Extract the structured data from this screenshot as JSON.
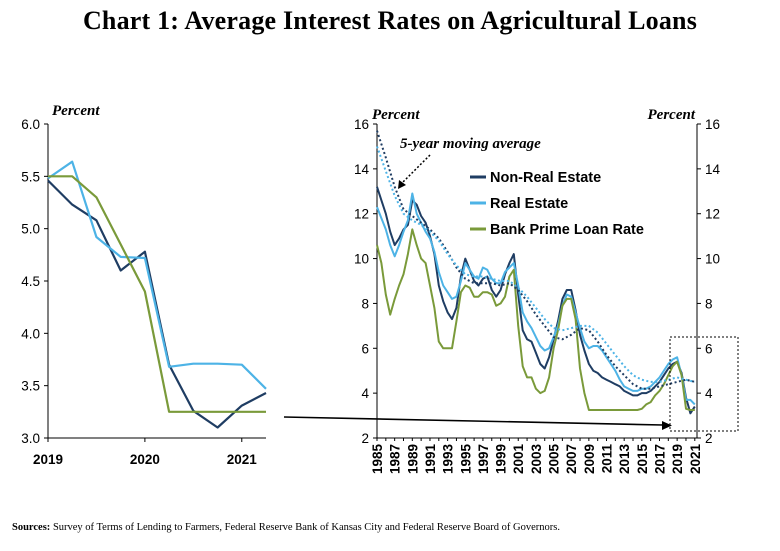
{
  "title": "Chart 1: Average Interest Rates on Agricultural Loans",
  "source": {
    "label": "Sources:",
    "text": " Survey of Terms of Lending to Farmers, Federal Reserve Bank of Kansas City and Federal Reserve Board of Governors."
  },
  "colors": {
    "non_real_estate": "#1f3d63",
    "real_estate": "#4db3e6",
    "bank_prime": "#7a9a3a"
  },
  "chart_data": [
    {
      "type": "line",
      "unit_label": "Percent",
      "ylim": [
        3.0,
        6.0
      ],
      "yticks": [
        "6.0",
        "5.5",
        "5.0",
        "4.5",
        "4.0",
        "3.5",
        "3.0"
      ],
      "xlim": [
        2019,
        2021.25
      ],
      "xticks": [
        "2019",
        "2020",
        "2021"
      ],
      "series": [
        {
          "key": "non_real_estate",
          "x": [
            2019.0,
            2019.25,
            2019.5,
            2019.75,
            2020.0,
            2020.25,
            2020.5,
            2020.75,
            2021.0,
            2021.25
          ],
          "values": [
            5.46,
            5.23,
            5.08,
            4.6,
            4.78,
            3.7,
            3.26,
            3.1,
            3.31,
            3.43
          ]
        },
        {
          "key": "real_estate",
          "x": [
            2019.0,
            2019.25,
            2019.5,
            2019.75,
            2020.0,
            2020.25,
            2020.5,
            2020.75,
            2021.0,
            2021.25
          ],
          "values": [
            5.48,
            5.64,
            4.92,
            4.73,
            4.72,
            3.68,
            3.71,
            3.71,
            3.7,
            3.47
          ]
        },
        {
          "key": "bank_prime",
          "x": [
            2019.0,
            2019.25,
            2019.5,
            2019.75,
            2020.0,
            2020.25,
            2020.5,
            2020.75,
            2021.0,
            2021.25
          ],
          "values": [
            5.5,
            5.5,
            5.3,
            4.85,
            4.4,
            3.25,
            3.25,
            3.25,
            3.25,
            3.25
          ]
        }
      ]
    },
    {
      "type": "line",
      "unit_label_left": "Percent",
      "unit_label_right": "Percent",
      "ylim": [
        2,
        16
      ],
      "yticks": [
        "2",
        "4",
        "6",
        "8",
        "10",
        "12",
        "14",
        "16"
      ],
      "xlim": [
        1985,
        2021.25
      ],
      "xticks": [
        "1985",
        "1987",
        "1989",
        "1991",
        "1993",
        "1995",
        "1997",
        "1999",
        "2001",
        "2003",
        "2005",
        "2007",
        "2009",
        "2011",
        "2013",
        "2015",
        "2017",
        "2019",
        "2021"
      ],
      "annotation": "5-year moving average",
      "legend": [
        {
          "key": "non_real_estate",
          "name": "Non-Real Estate"
        },
        {
          "key": "real_estate",
          "name": "Real Estate"
        },
        {
          "key": "bank_prime",
          "name": "Bank Prime Loan Rate"
        }
      ],
      "series": [
        {
          "key": "non_real_estate",
          "x": [
            1985,
            1985.5,
            1986,
            1986.5,
            1987,
            1987.5,
            1988,
            1988.5,
            1989,
            1989.5,
            1990,
            1990.5,
            1991,
            1991.5,
            1992,
            1992.5,
            1993,
            1993.5,
            1994,
            1994.5,
            1995,
            1995.5,
            1996,
            1996.5,
            1997,
            1997.5,
            1998,
            1998.5,
            1999,
            1999.5,
            2000,
            2000.5,
            2001,
            2001.5,
            2002,
            2002.5,
            2003,
            2003.5,
            2004,
            2004.5,
            2005,
            2005.5,
            2006,
            2006.5,
            2007,
            2007.5,
            2008,
            2008.5,
            2009,
            2009.5,
            2010,
            2010.5,
            2011,
            2011.5,
            2012,
            2012.5,
            2013,
            2013.5,
            2014,
            2014.5,
            2015,
            2015.5,
            2016,
            2016.5,
            2017,
            2017.5,
            2018,
            2018.5,
            2019,
            2019.5,
            2020,
            2020.5,
            2021
          ],
          "values": [
            13.2,
            12.6,
            12.0,
            11.2,
            10.6,
            10.9,
            11.3,
            11.5,
            12.6,
            12.4,
            11.9,
            11.6,
            11.0,
            10.2,
            8.8,
            8.1,
            7.6,
            7.3,
            7.8,
            9.2,
            10.0,
            9.5,
            9.0,
            8.8,
            9.1,
            9.2,
            8.6,
            8.3,
            8.6,
            9.3,
            9.8,
            10.2,
            8.4,
            6.8,
            6.4,
            6.3,
            5.8,
            5.3,
            5.1,
            5.6,
            6.4,
            7.2,
            8.2,
            8.6,
            8.6,
            7.7,
            6.6,
            5.9,
            5.3,
            5.0,
            4.9,
            4.7,
            4.6,
            4.5,
            4.4,
            4.3,
            4.1,
            4.0,
            3.9,
            3.9,
            4.0,
            4.0,
            4.1,
            4.3,
            4.5,
            4.8,
            5.1,
            5.3,
            5.4,
            4.9,
            3.8,
            3.1,
            3.4
          ]
        },
        {
          "key": "real_estate",
          "x": [
            1985,
            1985.5,
            1986,
            1986.5,
            1987,
            1987.5,
            1988,
            1988.5,
            1989,
            1989.5,
            1990,
            1990.5,
            1991,
            1991.5,
            1992,
            1992.5,
            1993,
            1993.5,
            1994,
            1994.5,
            1995,
            1995.5,
            1996,
            1996.5,
            1997,
            1997.5,
            1998,
            1998.5,
            1999,
            1999.5,
            2000,
            2000.5,
            2001,
            2001.5,
            2002,
            2002.5,
            2003,
            2003.5,
            2004,
            2004.5,
            2005,
            2005.5,
            2006,
            2006.5,
            2007,
            2007.5,
            2008,
            2008.5,
            2009,
            2009.5,
            2010,
            2010.5,
            2011,
            2011.5,
            2012,
            2012.5,
            2013,
            2013.5,
            2014,
            2014.5,
            2015,
            2015.5,
            2016,
            2016.5,
            2017,
            2017.5,
            2018,
            2018.5,
            2019,
            2019.5,
            2020,
            2020.5,
            2021
          ],
          "values": [
            12.3,
            11.8,
            11.3,
            10.6,
            10.1,
            10.6,
            11.2,
            11.7,
            12.9,
            12.0,
            11.6,
            11.2,
            10.9,
            10.3,
            9.4,
            8.8,
            8.5,
            8.2,
            8.3,
            9.0,
            9.8,
            9.5,
            9.2,
            9.1,
            9.6,
            9.5,
            9.1,
            8.9,
            8.9,
            9.4,
            9.6,
            9.8,
            8.8,
            7.6,
            7.2,
            6.9,
            6.5,
            6.1,
            5.9,
            6.0,
            6.5,
            7.0,
            7.9,
            8.4,
            8.3,
            7.6,
            6.9,
            6.3,
            6.0,
            6.1,
            6.1,
            5.9,
            5.6,
            5.3,
            5.0,
            4.6,
            4.3,
            4.2,
            4.1,
            4.1,
            4.2,
            4.2,
            4.3,
            4.5,
            4.7,
            5.0,
            5.3,
            5.5,
            5.6,
            4.8,
            3.7,
            3.7,
            3.5
          ]
        },
        {
          "key": "bank_prime",
          "x": [
            1985,
            1985.5,
            1986,
            1986.5,
            1987,
            1987.5,
            1988,
            1988.5,
            1989,
            1989.5,
            1990,
            1990.5,
            1991,
            1991.5,
            1992,
            1992.5,
            1993,
            1993.5,
            1994,
            1994.5,
            1995,
            1995.5,
            1996,
            1996.5,
            1997,
            1997.5,
            1998,
            1998.5,
            1999,
            1999.5,
            2000,
            2000.5,
            2001,
            2001.5,
            2002,
            2002.5,
            2003,
            2003.5,
            2004,
            2004.5,
            2005,
            2005.5,
            2006,
            2006.5,
            2007,
            2007.5,
            2008,
            2008.5,
            2009,
            2009.5,
            2010,
            2010.5,
            2011,
            2011.5,
            2012,
            2012.5,
            2013,
            2013.5,
            2014,
            2014.5,
            2015,
            2015.5,
            2016,
            2016.5,
            2017,
            2017.5,
            2018,
            2018.5,
            2019,
            2019.5,
            2020,
            2020.5,
            2021
          ],
          "values": [
            10.6,
            9.8,
            8.4,
            7.5,
            8.2,
            8.8,
            9.3,
            10.2,
            11.3,
            10.6,
            10.0,
            9.8,
            8.8,
            7.8,
            6.3,
            6.0,
            6.0,
            6.0,
            7.2,
            8.5,
            8.8,
            8.7,
            8.3,
            8.3,
            8.5,
            8.5,
            8.4,
            7.9,
            8.0,
            8.3,
            9.2,
            9.5,
            7.0,
            5.2,
            4.7,
            4.7,
            4.2,
            4.0,
            4.1,
            4.7,
            6.0,
            6.8,
            7.9,
            8.2,
            8.2,
            7.3,
            5.1,
            4.0,
            3.25,
            3.25,
            3.25,
            3.25,
            3.25,
            3.25,
            3.25,
            3.25,
            3.25,
            3.25,
            3.25,
            3.25,
            3.3,
            3.5,
            3.6,
            3.9,
            4.1,
            4.4,
            4.8,
            5.2,
            5.4,
            4.8,
            3.3,
            3.25,
            3.25
          ]
        },
        {
          "key": "non_real_estate",
          "moving_average": true,
          "x": [
            1985,
            1986,
            1987,
            1988,
            1989,
            1990,
            1991,
            1992,
            1993,
            1994,
            1995,
            1996,
            1997,
            1998,
            1999,
            2000,
            2001,
            2002,
            2003,
            2004,
            2005,
            2006,
            2007,
            2008,
            2009,
            2010,
            2011,
            2012,
            2013,
            2014,
            2015,
            2016,
            2017,
            2018,
            2019,
            2020,
            2021
          ],
          "values": [
            15.7,
            14.5,
            13.2,
            12.2,
            11.9,
            11.6,
            11.3,
            10.9,
            10.3,
            9.6,
            9.1,
            8.9,
            8.9,
            8.9,
            8.8,
            8.9,
            8.6,
            8.1,
            7.5,
            7.0,
            6.5,
            6.4,
            6.6,
            6.9,
            6.8,
            6.3,
            5.7,
            5.2,
            4.8,
            4.4,
            4.2,
            4.2,
            4.3,
            4.4,
            4.5,
            4.6,
            4.5
          ]
        },
        {
          "key": "real_estate",
          "moving_average": true,
          "x": [
            1985,
            1986,
            1987,
            1988,
            1989,
            1990,
            1991,
            1992,
            1993,
            1994,
            1995,
            1996,
            1997,
            1998,
            1999,
            2000,
            2001,
            2002,
            2003,
            2004,
            2005,
            2006,
            2007,
            2008,
            2009,
            2010,
            2011,
            2012,
            2013,
            2014,
            2015,
            2016,
            2017,
            2018,
            2019,
            2020,
            2021
          ],
          "values": [
            15.0,
            13.9,
            12.8,
            12.0,
            11.7,
            11.5,
            11.2,
            10.8,
            10.2,
            9.7,
            9.3,
            9.2,
            9.2,
            9.1,
            9.0,
            9.0,
            8.7,
            8.3,
            7.8,
            7.3,
            6.9,
            6.8,
            6.9,
            7.0,
            7.0,
            6.7,
            6.2,
            5.7,
            5.2,
            4.8,
            4.6,
            4.5,
            4.5,
            4.6,
            4.7,
            4.6,
            4.5
          ]
        }
      ]
    }
  ]
}
